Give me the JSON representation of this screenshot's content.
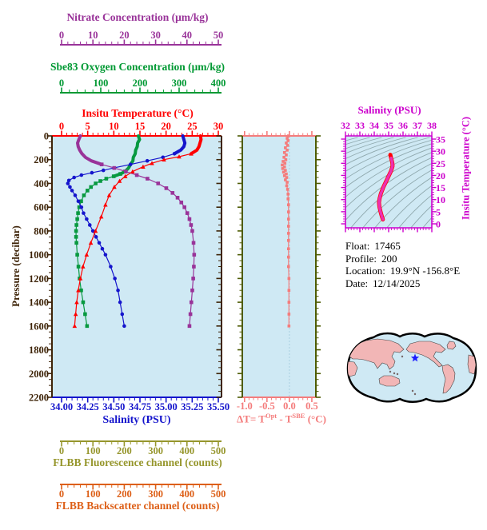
{
  "window": {
    "background": "#ffffff",
    "plot_background": "#cfe9f4"
  },
  "metadata_panel": {
    "lines": [
      {
        "label": "Float:",
        "value": "17465"
      },
      {
        "label": "Profile:",
        "value": "200"
      },
      {
        "label": "Location:",
        "value": "19.9°N  -156.8°E"
      },
      {
        "label": "Date:",
        "value": "12/14/2025"
      }
    ]
  },
  "chart_data": [
    {
      "id": "profile_plot",
      "type": "line",
      "ylabel": "Pressure (decibar)",
      "y_axis": {
        "label": "Pressure (decibar)",
        "min": 0,
        "max": 2200,
        "minor_step": 50,
        "color": "#3e2408",
        "major_ticks": [
          0,
          200,
          400,
          600,
          800,
          1000,
          1200,
          1400,
          1600,
          1800,
          2000,
          2200
        ],
        "tick_labels": [
          "0",
          "200",
          "400",
          "600",
          "800",
          "1000",
          "1200",
          "1400",
          "1600",
          "1800",
          "2000",
          "2200"
        ]
      },
      "top_axes": [
        {
          "id": "nitrate",
          "title": "Nitrate Concentration (μm/kg)",
          "min": 0,
          "max": 50,
          "minor_step": 2,
          "major_ticks": [
            0,
            10,
            20,
            30,
            40,
            50
          ],
          "tick_labels": [
            "0",
            "10",
            "20",
            "30",
            "40",
            "50"
          ],
          "color": "#993399"
        },
        {
          "id": "oxygen",
          "title": "Sbe83 Oxygen Concentration (μm/kg)",
          "min": 0,
          "max": 400,
          "minor_step": 20,
          "major_ticks": [
            0,
            100,
            200,
            300,
            400
          ],
          "tick_labels": [
            "0",
            "100",
            "200",
            "300",
            "400"
          ],
          "color": "#009933"
        },
        {
          "id": "temperature",
          "title": "Insitu Temperature (°C)",
          "min": 0,
          "max": 30,
          "minor_step": 1,
          "major_ticks": [
            0,
            5,
            10,
            15,
            20,
            25,
            30
          ],
          "tick_labels": [
            "0",
            "5",
            "10",
            "15",
            "20",
            "25",
            "30"
          ],
          "color": "#ff0000"
        }
      ],
      "bottom_axis": {
        "id": "salinity",
        "title": "Salinity (PSU)",
        "min": 34.0,
        "max": 35.5,
        "minor_step": 0.05,
        "major_ticks": [
          34.0,
          34.25,
          34.5,
          34.75,
          35.0,
          35.25,
          35.5
        ],
        "tick_labels": [
          "34.00",
          "34.25",
          "34.50",
          "34.75",
          "35.00",
          "35.25",
          "35.50"
        ],
        "color": "#1414cc"
      },
      "lower_axes": [
        {
          "id": "fluorescence",
          "title": "FLBB Fluorescence channel (counts)",
          "min": 0,
          "max": 500,
          "minor_step": 20,
          "major_ticks": [
            0,
            100,
            200,
            300,
            400,
            500
          ],
          "tick_labels": [
            "0",
            "100",
            "200",
            "300",
            "400",
            "500"
          ],
          "color": "#96962c"
        },
        {
          "id": "backscatter",
          "title": "FLBB Backscatter channel (counts)",
          "min": 0,
          "max": 500,
          "minor_step": 20,
          "major_ticks": [
            0,
            100,
            200,
            300,
            400,
            500
          ],
          "tick_labels": [
            "0",
            "100",
            "200",
            "300",
            "400",
            "500"
          ],
          "color": "#dd5f17"
        }
      ],
      "series": [
        {
          "name": "oxygen",
          "axis": "oxygen",
          "color": "#089940",
          "marker": "square",
          "thick_until": 340,
          "pressure": [
            0,
            30,
            60,
            90,
            120,
            150,
            180,
            210,
            240,
            270,
            300,
            320,
            340,
            360,
            380,
            400,
            430,
            460,
            500,
            550,
            600,
            650,
            700,
            750,
            800,
            850,
            900,
            1000,
            1100,
            1200,
            1300,
            1400,
            1500,
            1600
          ],
          "values": [
            196,
            199,
            194,
            193,
            189,
            188,
            183,
            182,
            176,
            171,
            162,
            150,
            133,
            114,
            99,
            87,
            75,
            66,
            57,
            50,
            45,
            42,
            40,
            38,
            37,
            37,
            38,
            40,
            43,
            46,
            50,
            55,
            60,
            65
          ]
        },
        {
          "name": "salinity",
          "axis": "salinity",
          "color": "#1515cc",
          "marker": "circle",
          "thick_until": 170,
          "pressure": [
            0,
            30,
            60,
            90,
            120,
            150,
            180,
            210,
            240,
            270,
            290,
            310,
            330,
            350,
            375,
            400,
            430,
            460,
            500,
            550,
            600,
            650,
            700,
            750,
            800,
            850,
            900,
            950,
            1000,
            1100,
            1200,
            1300,
            1400,
            1500,
            1600
          ],
          "values": [
            35.16,
            35.17,
            35.18,
            35.17,
            35.14,
            35.08,
            34.97,
            34.82,
            34.66,
            34.5,
            34.4,
            34.29,
            34.19,
            34.12,
            34.07,
            34.06,
            34.08,
            34.1,
            34.13,
            34.16,
            34.19,
            34.21,
            34.24,
            34.27,
            34.3,
            34.33,
            34.36,
            34.39,
            34.42,
            34.47,
            34.51,
            34.54,
            34.56,
            34.58,
            34.6
          ]
        },
        {
          "name": "nitrate",
          "axis": "nitrate",
          "color": "#993399",
          "marker": "square",
          "thick_until": 250,
          "pressure": [
            0,
            30,
            60,
            90,
            120,
            150,
            180,
            210,
            240,
            270,
            300,
            330,
            360,
            400,
            440,
            480,
            520,
            560,
            600,
            650,
            700,
            750,
            800,
            900,
            1000,
            1100,
            1200,
            1300,
            1400,
            1500,
            1600
          ],
          "values": [
            6.0,
            5.5,
            5.1,
            5.3,
            5.8,
            6.5,
            7.6,
            9.5,
            12.8,
            16.8,
            20.5,
            24.0,
            27.4,
            30.8,
            33.4,
            35.4,
            37.0,
            38.2,
            39.2,
            40.1,
            40.8,
            41.3,
            41.7,
            42.1,
            42.3,
            42.2,
            42.0,
            41.7,
            41.4,
            41.1,
            40.8
          ]
        },
        {
          "name": "temperature",
          "axis": "temperature",
          "color": "#ff0000",
          "marker": "triangle",
          "thick_until": 160,
          "pressure": [
            0,
            30,
            60,
            90,
            120,
            150,
            175,
            200,
            230,
            260,
            300,
            340,
            380,
            430,
            500,
            580,
            680,
            800,
            900,
            1000,
            1100,
            1200,
            1300,
            1400,
            1500,
            1600
          ],
          "values": [
            26.6,
            26.7,
            26.5,
            26.3,
            25.9,
            24.8,
            22.5,
            19.6,
            17.3,
            15.6,
            13.6,
            12.2,
            11.1,
            10.1,
            9.1,
            8.4,
            7.6,
            6.5,
            5.6,
            4.8,
            4.1,
            3.6,
            3.2,
            2.9,
            2.7,
            2.5
          ]
        }
      ]
    },
    {
      "id": "delta_t_plot",
      "type": "line",
      "xlabel_parts": {
        "pre": "ΔT= T",
        "sup1": "Opt",
        "mid": " - T",
        "sup2": "SBE",
        "post": " (°C)"
      },
      "x_axis": {
        "min": -1.05,
        "max": 0.59,
        "minor_step": 0.1,
        "color": "#f47c7c",
        "major_ticks": [
          -1.0,
          -0.5,
          0.0,
          0.5
        ],
        "tick_labels": [
          "-1.0",
          "-0.5",
          "0.0",
          "0.5"
        ]
      },
      "side_axis_color": "#4e5c04",
      "zero_line_color": "#a8cfdf",
      "series": [
        {
          "name": "delta_t",
          "color": "#f47c7c",
          "marker": "square",
          "pressure": [
            0,
            20,
            40,
            60,
            80,
            100,
            120,
            140,
            160,
            180,
            200,
            215,
            230,
            245,
            260,
            275,
            290,
            305,
            320,
            335,
            350,
            370,
            390,
            420,
            450,
            490,
            530,
            580,
            640,
            700,
            760,
            820,
            880,
            950,
            1020,
            1100,
            1200,
            1300,
            1400,
            1500,
            1600
          ],
          "values": [
            -0.02,
            -0.05,
            -0.03,
            -0.07,
            -0.04,
            -0.09,
            -0.05,
            -0.11,
            -0.07,
            -0.12,
            -0.08,
            -0.14,
            -0.1,
            -0.16,
            -0.11,
            -0.15,
            -0.09,
            -0.13,
            -0.07,
            -0.11,
            -0.06,
            -0.09,
            -0.05,
            -0.06,
            -0.04,
            -0.03,
            -0.03,
            -0.02,
            -0.02,
            -0.02,
            -0.02,
            -0.02,
            -0.02,
            -0.02,
            -0.02,
            -0.02,
            -0.01,
            -0.01,
            -0.01,
            -0.01,
            -0.01
          ]
        }
      ]
    },
    {
      "id": "ts_plot",
      "type": "line",
      "x_axis": {
        "title": "Salinity (PSU)",
        "min": 32,
        "max": 38,
        "minor_step": 0.2,
        "color": "#cc00cc",
        "major_ticks": [
          32,
          33,
          34,
          35,
          36,
          37,
          38
        ],
        "tick_labels": [
          "32",
          "33",
          "34",
          "35",
          "36",
          "37",
          "38"
        ]
      },
      "y_axis": {
        "label": "Insitu Temperature (°C)",
        "min": 0,
        "max": 35,
        "minor_step": 1,
        "color": "#cc00cc",
        "major_ticks": [
          0,
          5,
          10,
          15,
          20,
          25,
          30,
          35
        ],
        "tick_labels": [
          "0",
          "5",
          "10",
          "15",
          "20",
          "25",
          "30",
          "35"
        ]
      },
      "contours": {
        "count": 19,
        "color": "#8fa8ad"
      },
      "series": [
        {
          "name": "ts_relation",
          "color": "#ee2fb2",
          "underlay_color": "#ff0000",
          "salinity": [
            35.17,
            35.21,
            35.26,
            35.27,
            35.18,
            35.02,
            34.82,
            34.62,
            34.46,
            34.37,
            34.33,
            34.36,
            34.44,
            34.52,
            34.6
          ],
          "temperature": [
            27.2,
            26.3,
            25.0,
            23.8,
            22.0,
            20.0,
            17.5,
            15.0,
            12.5,
            10.5,
            8.8,
            7.0,
            5.0,
            3.2,
            1.8
          ]
        }
      ]
    },
    {
      "id": "world_map",
      "ocean_color": "#cfe9f4",
      "land_color": "#f2b6b6",
      "outline_color": "#000000",
      "star_color": "#1c1cff",
      "star_position": {
        "x": 519,
        "y": 448
      }
    }
  ]
}
